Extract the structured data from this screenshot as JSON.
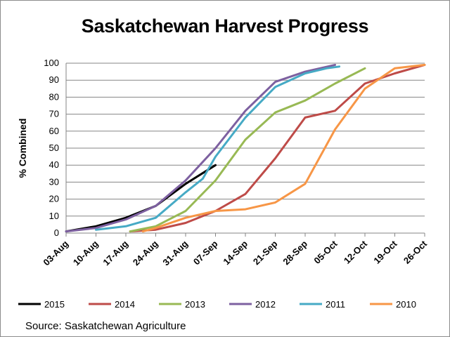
{
  "chart_data": {
    "type": "line",
    "title": "Saskatchewan Harvest Progress",
    "xlabel": "",
    "ylabel": "% Combined",
    "ylim": [
      0,
      100
    ],
    "yticks": [
      0,
      10,
      20,
      30,
      40,
      50,
      60,
      70,
      80,
      90,
      100
    ],
    "xlim": [
      "2015-08-03",
      "2015-10-26"
    ],
    "xticks": [
      "03-Aug",
      "10-Aug",
      "17-Aug",
      "24-Aug",
      "31-Aug",
      "07-Sep",
      "14-Sep",
      "21-Sep",
      "28-Sep",
      "05-Oct",
      "12-Oct",
      "19-Oct",
      "26-Oct"
    ],
    "grid": "horizontal",
    "legend": "bottom",
    "series": [
      {
        "name": "2015",
        "color": "#000000",
        "x": [
          "2015-08-03",
          "2015-08-10",
          "2015-08-17",
          "2015-08-24",
          "2015-08-31",
          "2015-09-07"
        ],
        "y": [
          1,
          4,
          9,
          16,
          29,
          40
        ]
      },
      {
        "name": "2014",
        "color": "#be4b48",
        "x": [
          "2015-08-18",
          "2015-08-24",
          "2015-08-31",
          "2015-09-07",
          "2015-09-14",
          "2015-09-21",
          "2015-09-28",
          "2015-10-05",
          "2015-10-12",
          "2015-10-19",
          "2015-10-26"
        ],
        "y": [
          1,
          2,
          6,
          13,
          23,
          44,
          68,
          72,
          88,
          94,
          99
        ]
      },
      {
        "name": "2013",
        "color": "#98b954",
        "x": [
          "2015-08-18",
          "2015-08-24",
          "2015-08-31",
          "2015-09-07",
          "2015-09-14",
          "2015-09-21",
          "2015-09-28",
          "2015-10-05",
          "2015-10-12"
        ],
        "y": [
          1,
          4,
          13,
          31,
          55,
          71,
          78,
          88,
          97
        ]
      },
      {
        "name": "2012",
        "color": "#7d60a0",
        "x": [
          "2015-08-03",
          "2015-08-10",
          "2015-08-17",
          "2015-08-24",
          "2015-08-31",
          "2015-09-07",
          "2015-09-14",
          "2015-09-21",
          "2015-09-28",
          "2015-10-05"
        ],
        "y": [
          1,
          3,
          8,
          16,
          31,
          50,
          72,
          89,
          95,
          99
        ]
      },
      {
        "name": "2011",
        "color": "#46aac5",
        "x": [
          "2015-08-10",
          "2015-08-17",
          "2015-08-24",
          "2015-08-31",
          "2015-09-04",
          "2015-09-07",
          "2015-09-14",
          "2015-09-21",
          "2015-09-28",
          "2015-10-03",
          "2015-10-06"
        ],
        "y": [
          2,
          4,
          9,
          24,
          32,
          45,
          68,
          86,
          94,
          97,
          98
        ]
      },
      {
        "name": "2010",
        "color": "#f79646",
        "x": [
          "2015-08-21",
          "2015-08-24",
          "2015-08-31",
          "2015-09-07",
          "2015-09-14",
          "2015-09-21",
          "2015-09-28",
          "2015-10-05",
          "2015-10-12",
          "2015-10-19",
          "2015-10-26"
        ],
        "y": [
          1,
          3,
          9,
          13,
          14,
          18,
          29,
          61,
          85,
          97,
          99
        ]
      }
    ]
  },
  "source": "Source: Saskatchewan Agriculture"
}
